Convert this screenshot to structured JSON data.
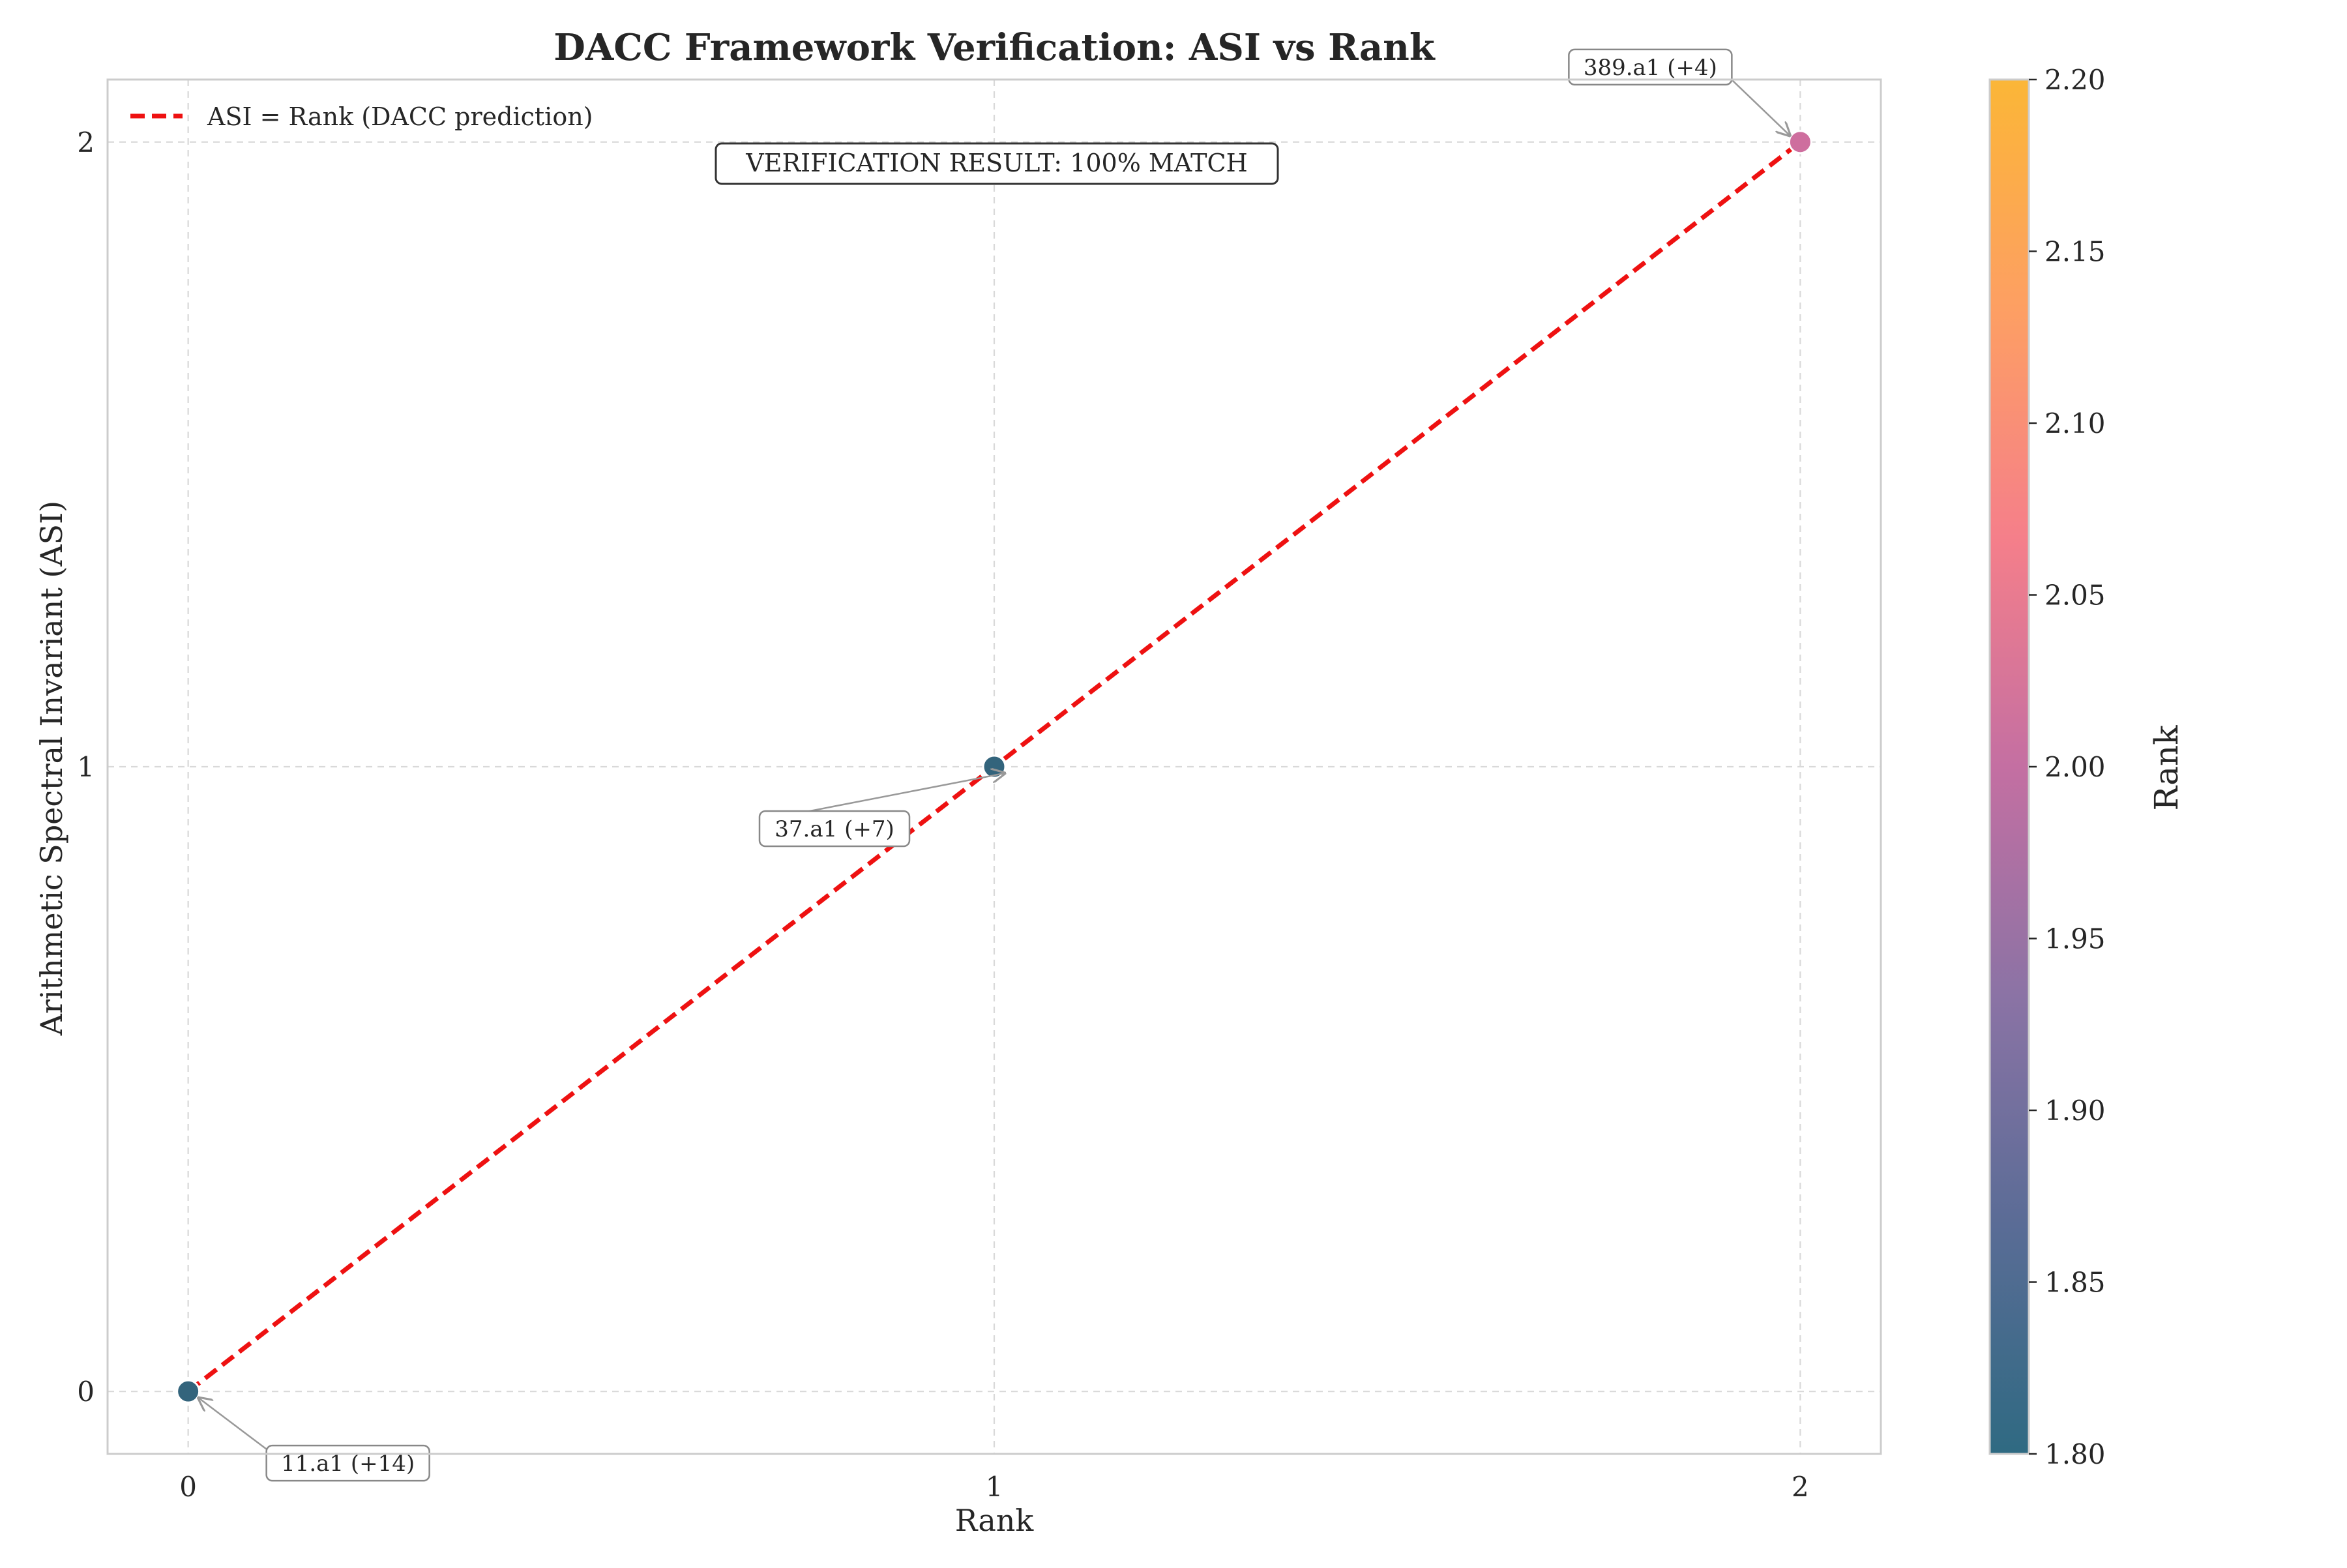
{
  "chart_data": {
    "type": "scatter",
    "title": "DACC Framework Verification: ASI vs Rank",
    "xlabel": "Rank",
    "ylabel": "Arithmetic Spectral Invariant (ASI)",
    "xlim": [
      -0.1,
      2.1
    ],
    "ylim": [
      -0.1,
      2.1
    ],
    "x_ticks": [
      0,
      1,
      2
    ],
    "y_ticks": [
      0,
      1,
      2
    ],
    "grid": true,
    "points": [
      {
        "x": 0,
        "y": 0,
        "label": "11.a1 (+14)",
        "color": "#33647c"
      },
      {
        "x": 1,
        "y": 1,
        "label": "37.a1 (+7)",
        "color": "#33647c"
      },
      {
        "x": 2,
        "y": 2,
        "label": "389.a1 (+4)",
        "color": "#ce6e9e"
      }
    ],
    "reference_line": {
      "name": "ASI = Rank (DACC prediction)",
      "x": [
        0,
        2
      ],
      "y": [
        0,
        2
      ],
      "color": "#ee1111",
      "style": "dashed"
    },
    "legend": {
      "placement": "top-left",
      "entries": [
        "ASI = Rank (DACC prediction)"
      ]
    },
    "annotation": "VERIFICATION RESULT: 100% MATCH",
    "colorbar": {
      "label": "Rank",
      "min": 1.8,
      "max": 2.2,
      "ticks": [
        "1.80",
        "1.85",
        "1.90",
        "1.95",
        "2.00",
        "2.05",
        "2.10",
        "2.15",
        "2.20"
      ],
      "colors": [
        "#2f6a82",
        "#5a6c96",
        "#8b73a5",
        "#c46fa2",
        "#f57f8a",
        "#fd9f63",
        "#fbb637"
      ]
    }
  }
}
